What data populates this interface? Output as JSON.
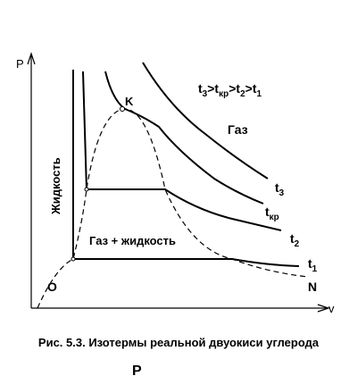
{
  "axes": {
    "y_label": "P",
    "x_label": "v",
    "origin_label": "O",
    "end_label": "N"
  },
  "critical_point": "K",
  "relation": {
    "operator": ">",
    "terms": [
      {
        "base": "t",
        "sub": "3"
      },
      {
        "base": "t",
        "sub": "кр"
      },
      {
        "base": "t",
        "sub": "2"
      },
      {
        "base": "t",
        "sub": "1"
      }
    ]
  },
  "regions": {
    "liquid": "Жидкость",
    "gas": "Газ",
    "mixture": "Газ + жидкость"
  },
  "isotherms": [
    {
      "base": "t",
      "sub": "3"
    },
    {
      "base": "t",
      "sub": "кр"
    },
    {
      "base": "t",
      "sub": "2"
    },
    {
      "base": "t",
      "sub": "1"
    }
  ],
  "caption": "Рис. 5.3. Изотермы реальной двуокиси углерода",
  "footer_fragment": "Р"
}
